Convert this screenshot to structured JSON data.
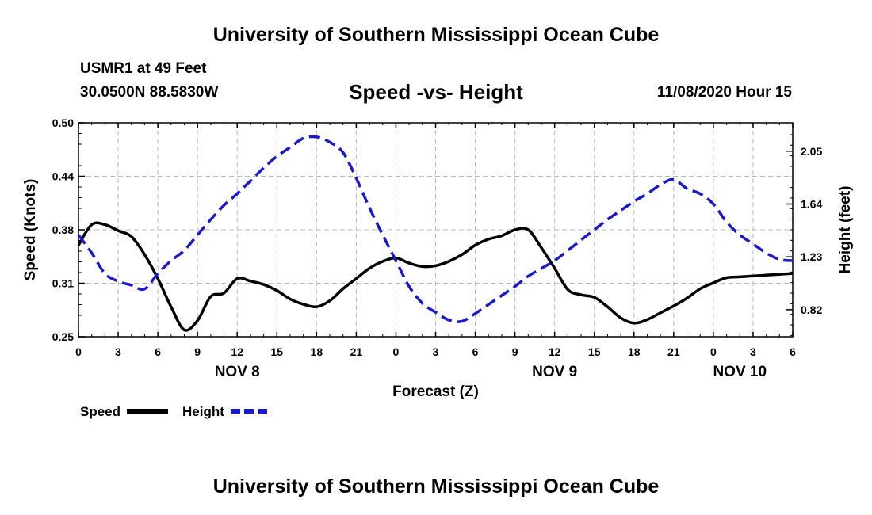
{
  "header": {
    "title": "University of Southern Mississippi Ocean Cube",
    "station": "USMR1 at 49 Feet",
    "coords": "30.0500N 88.5830W",
    "chart_title": "Speed -vs- Height",
    "datetime": "11/08/2020 Hour 15"
  },
  "footer": {
    "title": "University of Southern Mississippi Ocean Cube"
  },
  "colors": {
    "speed": "#000000",
    "height": "#1a1acc",
    "grid": "#bbbbbb"
  },
  "chart_data": {
    "type": "line",
    "title": "Speed -vs- Height",
    "xlabel": "Forecast (Z)",
    "ylabel_left": "Speed (Knots)",
    "ylabel_right": "Height (feet)",
    "x_range_hours": [
      0,
      54
    ],
    "x_ticks": [
      "0",
      "3",
      "6",
      "9",
      "12",
      "15",
      "18",
      "21",
      "0",
      "3",
      "6",
      "9",
      "12",
      "15",
      "18",
      "21",
      "0",
      "3",
      "6"
    ],
    "day_labels": [
      {
        "label": "NOV 8",
        "hour": 12
      },
      {
        "label": "NOV 9",
        "hour": 36
      },
      {
        "label": "NOV 10",
        "hour": 50
      }
    ],
    "yleft": {
      "min": 0.25,
      "max": 0.5,
      "ticks": [
        "0.25",
        "0.31",
        "0.38",
        "0.44",
        "0.50"
      ],
      "tick_values": [
        0.25,
        0.3125,
        0.375,
        0.4375,
        0.5
      ]
    },
    "yright": {
      "min": 0.61,
      "max": 2.27,
      "ticks": [
        "0.82",
        "1.23",
        "1.64",
        "2.05"
      ],
      "tick_values": [
        0.82,
        1.23,
        1.64,
        2.05
      ]
    },
    "legend": [
      {
        "name": "Speed",
        "style": "solid"
      },
      {
        "name": "Height",
        "style": "dashed"
      }
    ],
    "series": [
      {
        "name": "Speed",
        "axis": "left",
        "hours": [
          0,
          1,
          2,
          3,
          4,
          5,
          6,
          7,
          8,
          9,
          10,
          11,
          12,
          13,
          14,
          15,
          16,
          17,
          18,
          19,
          20,
          21,
          22,
          23,
          24,
          25,
          26,
          27,
          28,
          29,
          30,
          31,
          32,
          33,
          34,
          35,
          36,
          37,
          38,
          39,
          40,
          41,
          42,
          43,
          44,
          45,
          46,
          47,
          48,
          49,
          50,
          51,
          52,
          53,
          54
        ],
        "values": [
          0.357,
          0.381,
          0.381,
          0.374,
          0.367,
          0.346,
          0.318,
          0.285,
          0.258,
          0.269,
          0.297,
          0.301,
          0.318,
          0.315,
          0.311,
          0.304,
          0.294,
          0.288,
          0.285,
          0.292,
          0.306,
          0.318,
          0.33,
          0.338,
          0.342,
          0.336,
          0.332,
          0.333,
          0.338,
          0.346,
          0.357,
          0.364,
          0.368,
          0.375,
          0.375,
          0.354,
          0.33,
          0.305,
          0.299,
          0.296,
          0.285,
          0.272,
          0.266,
          0.27,
          0.278,
          0.286,
          0.295,
          0.306,
          0.313,
          0.319,
          0.32,
          0.321,
          0.322,
          0.323,
          0.324
        ]
      },
      {
        "name": "Height",
        "axis": "right",
        "hours": [
          0,
          1,
          2,
          3,
          4,
          5,
          6,
          7,
          8,
          9,
          10,
          11,
          12,
          13,
          14,
          15,
          16,
          17,
          18,
          19,
          20,
          21,
          22,
          23,
          24,
          25,
          26,
          27,
          28,
          29,
          30,
          31,
          32,
          33,
          34,
          35,
          36,
          37,
          38,
          39,
          40,
          41,
          42,
          43,
          44,
          45,
          46,
          47,
          48,
          49,
          50,
          51,
          52,
          53,
          54
        ],
        "values": [
          1.4,
          1.26,
          1.1,
          1.04,
          1.01,
          0.98,
          1.1,
          1.2,
          1.28,
          1.4,
          1.52,
          1.63,
          1.72,
          1.82,
          1.92,
          2.01,
          2.08,
          2.15,
          2.16,
          2.12,
          2.04,
          1.84,
          1.61,
          1.4,
          1.2,
          1.0,
          0.87,
          0.8,
          0.74,
          0.73,
          0.79,
          0.86,
          0.93,
          1.0,
          1.08,
          1.14,
          1.2,
          1.28,
          1.36,
          1.44,
          1.52,
          1.59,
          1.66,
          1.72,
          1.79,
          1.83,
          1.76,
          1.72,
          1.64,
          1.5,
          1.4,
          1.33,
          1.26,
          1.21,
          1.2
        ]
      }
    ]
  }
}
